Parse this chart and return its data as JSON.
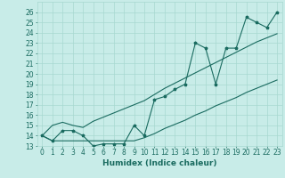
{
  "title": "",
  "xlabel": "Humidex (Indice chaleur)",
  "bg_color": "#c8ece8",
  "grid_color": "#a8d8d0",
  "line_color": "#1a6b60",
  "x_data": [
    0,
    1,
    2,
    3,
    4,
    5,
    6,
    7,
    8,
    9,
    10,
    11,
    12,
    13,
    14,
    15,
    16,
    17,
    18,
    19,
    20,
    21,
    22,
    23
  ],
  "y_main": [
    14.0,
    13.5,
    14.5,
    14.5,
    14.0,
    13.0,
    13.2,
    13.2,
    13.2,
    15.0,
    14.0,
    17.5,
    17.8,
    18.5,
    19.0,
    23.0,
    22.5,
    19.0,
    22.5,
    22.5,
    25.5,
    25.0,
    24.5,
    26.0
  ],
  "y_upper": [
    14.0,
    15.0,
    15.3,
    15.0,
    14.8,
    15.4,
    15.8,
    16.2,
    16.6,
    17.0,
    17.4,
    18.0,
    18.6,
    19.1,
    19.6,
    20.1,
    20.6,
    21.1,
    21.6,
    22.1,
    22.6,
    23.1,
    23.5,
    23.9
  ],
  "y_lower": [
    14.0,
    13.5,
    13.5,
    13.5,
    13.5,
    13.5,
    13.5,
    13.5,
    13.5,
    13.5,
    13.8,
    14.2,
    14.7,
    15.1,
    15.5,
    16.0,
    16.4,
    16.9,
    17.3,
    17.7,
    18.2,
    18.6,
    19.0,
    19.4
  ],
  "ylim": [
    13,
    27
  ],
  "xlim": [
    -0.5,
    23.5
  ],
  "label_fontsize": 6.5,
  "tick_fontsize": 5.5
}
